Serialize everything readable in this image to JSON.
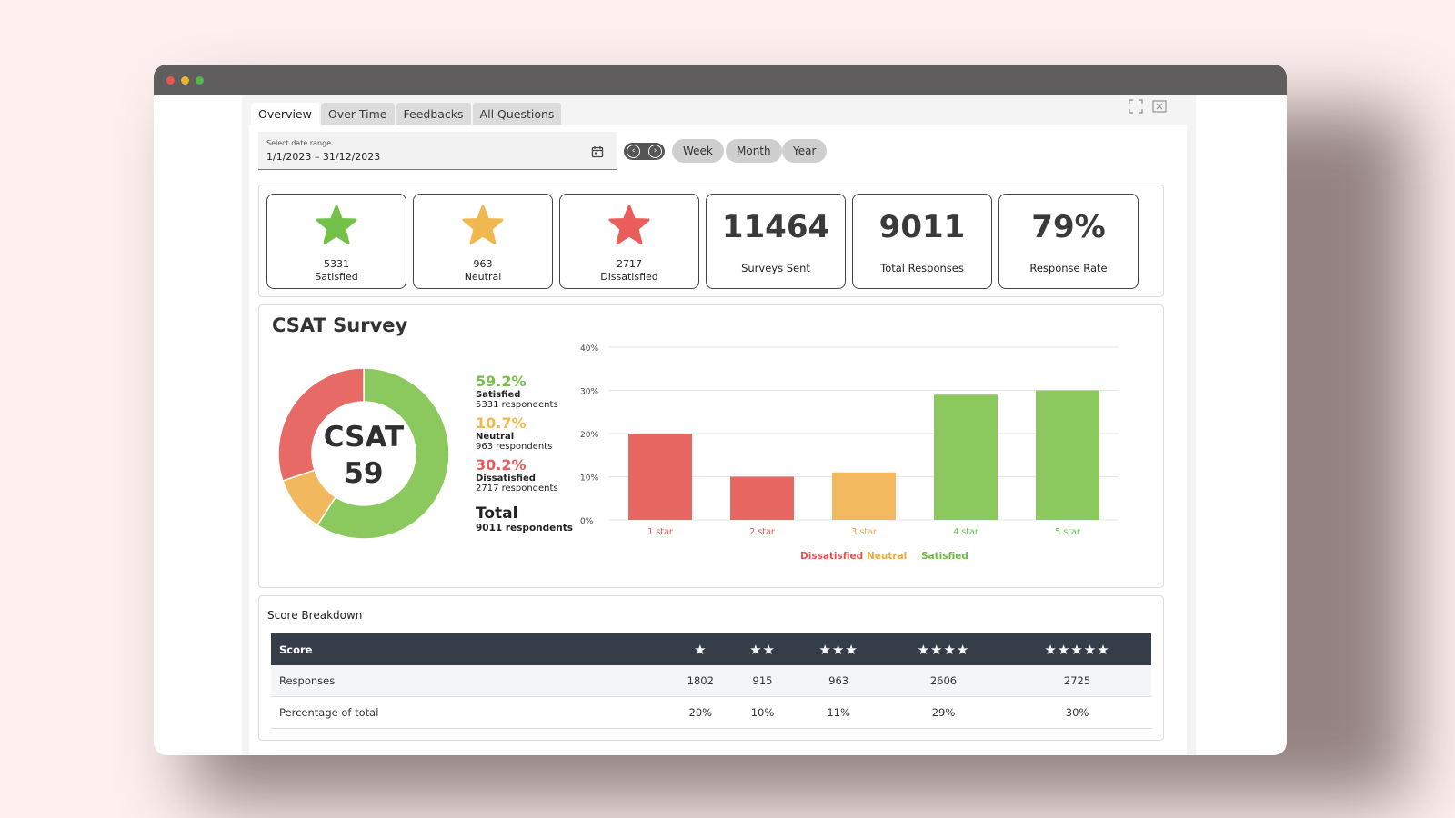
{
  "tabs": [
    "Overview",
    "Over Time",
    "Feedbacks",
    "All Questions"
  ],
  "date_range": {
    "label": "Select date range",
    "value": "1/1/2023 – 31/12/2023"
  },
  "periods": [
    "Week",
    "Month",
    "Year"
  ],
  "kpis": {
    "satisfied": {
      "value": "5331",
      "label": "Satisfied",
      "color": "#74c14a"
    },
    "neutral": {
      "value": "963",
      "label": "Neutral",
      "color": "#f2b850"
    },
    "dissatisfied": {
      "value": "2717",
      "label": "Dissatisfied",
      "color": "#e95d5c"
    },
    "surveys_sent": {
      "value": "11464",
      "label": "Surveys Sent"
    },
    "total_responses": {
      "value": "9011",
      "label": "Total Responses"
    },
    "response_rate": {
      "value": "79%",
      "label": "Response Rate"
    }
  },
  "csat": {
    "title": "CSAT Survey",
    "center_label": "CSAT",
    "center_value": "59",
    "stats": [
      {
        "pct": "59.2%",
        "name": "Satisfied",
        "respondents": "5331 respondents",
        "color": "#74c14a"
      },
      {
        "pct": "10.7%",
        "name": "Neutral",
        "respondents": "963 respondents",
        "color": "#f2b850"
      },
      {
        "pct": "30.2%",
        "name": "Dissatisfied",
        "respondents": "2717 respondents",
        "color": "#e95d5c"
      }
    ],
    "total_label": "Total",
    "total_respondents": "9011 respondents"
  },
  "chart_data": [
    {
      "type": "pie",
      "categories": [
        "Satisfied",
        "Neutral",
        "Dissatisfied"
      ],
      "values": [
        59.2,
        10.7,
        30.2
      ],
      "colors": [
        "#8bc95e",
        "#f2b85e",
        "#e86a66"
      ]
    },
    {
      "type": "bar",
      "categories": [
        "1 star",
        "2 star",
        "3 star",
        "4 star",
        "5 star"
      ],
      "values": [
        20,
        10,
        11,
        29,
        30
      ],
      "bar_colors": [
        "#e86763",
        "#e86763",
        "#f2b95f",
        "#8bc95e",
        "#8bc95e"
      ],
      "label_colors": [
        "#e2534f",
        "#e2534f",
        "#f0a93e",
        "#6cb843",
        "#6cb843"
      ],
      "yticks": [
        "0%",
        "10%",
        "20%",
        "30%",
        "40%"
      ],
      "ylim": [
        0,
        40
      ],
      "grid": true,
      "legend": [
        {
          "name": "Dissatisfied",
          "color": "#e2534f"
        },
        {
          "name": "Neutral",
          "color": "#f0a93e"
        },
        {
          "name": "Satisfied",
          "color": "#6cb843"
        }
      ],
      "legend_position": "bottom"
    }
  ],
  "breakdown": {
    "title": "Score Breakdown",
    "header": [
      "Score",
      "1",
      "2",
      "3",
      "4",
      "5"
    ],
    "rows": [
      {
        "label": "Responses",
        "values": [
          "1802",
          "915",
          "963",
          "2606",
          "2725"
        ]
      },
      {
        "label": "Percentage of total",
        "values": [
          "20%",
          "10%",
          "11%",
          "29%",
          "30%"
        ]
      }
    ]
  }
}
